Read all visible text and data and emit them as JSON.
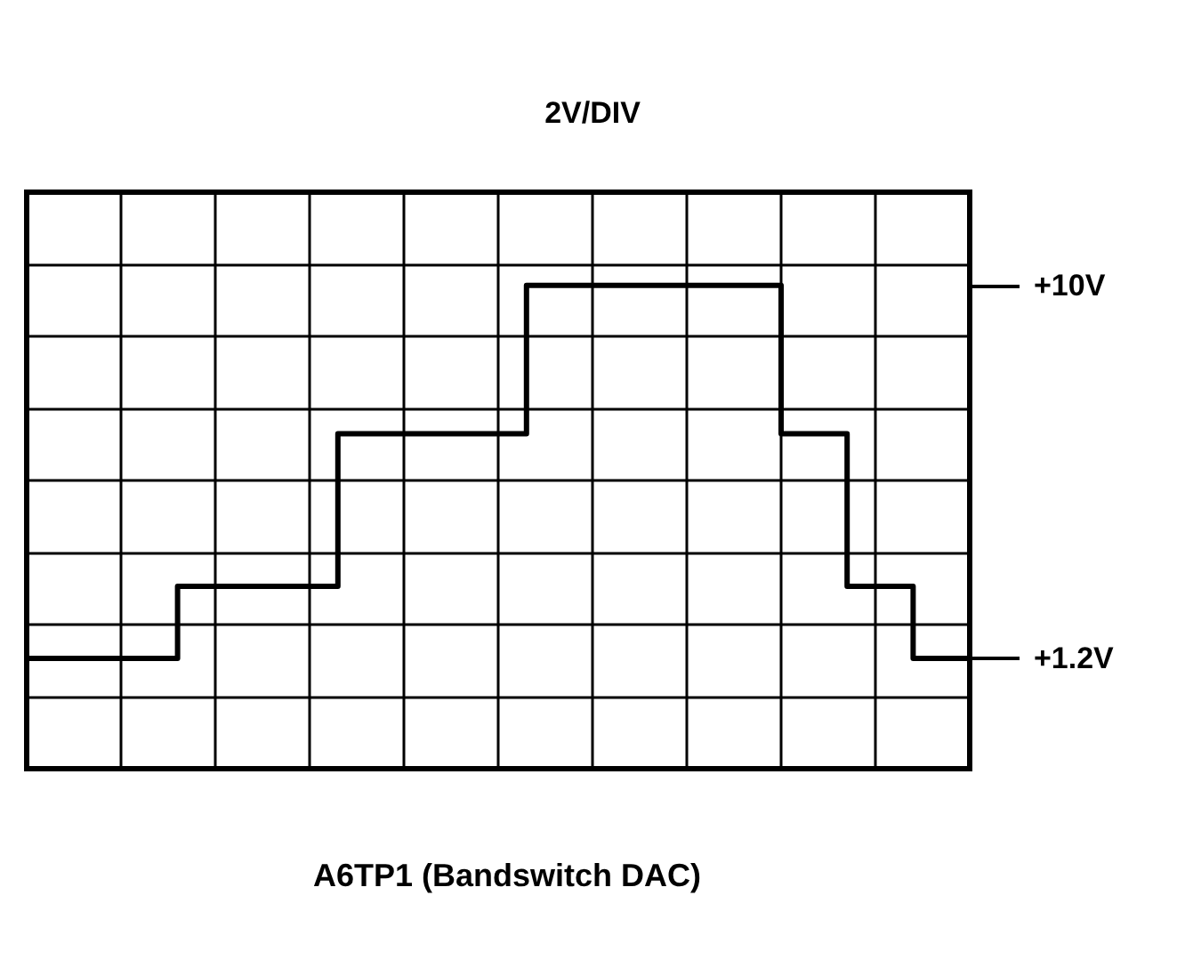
{
  "chart_data": {
    "type": "step",
    "title": "2V/DIV",
    "xlabel": "A6TP1 (Bandswitch DAC)",
    "categories": [
      null,
      null,
      null,
      null,
      null,
      null,
      null,
      null,
      null,
      null,
      null,
      null,
      null,
      null,
      null,
      null,
      null,
      null,
      null,
      null,
      null,
      null,
      null,
      null,
      null,
      null,
      null,
      null,
      null,
      null,
      null,
      null,
      null,
      null,
      null,
      null,
      null,
      null,
      null,
      null,
      null,
      null,
      null,
      null,
      null,
      null,
      null,
      null,
      null,
      null,
      null,
      null,
      null,
      null,
      null,
      null,
      null,
      null,
      null,
      null,
      null,
      null,
      null,
      null,
      null,
      null,
      null,
      null,
      null,
      null,
      null,
      null,
      null,
      null,
      null,
      null,
      null,
      null,
      null,
      null,
      null,
      null,
      null,
      null,
      null,
      null,
      null,
      null,
      null,
      null,
      null,
      null,
      null,
      null,
      null,
      null,
      null,
      null,
      null,
      null,
      null
    ],
    "series": [
      {
        "color": "#000000",
        "values": [
          1.2,
          1.2,
          1.2,
          1.2,
          1.2,
          1.2,
          1.2,
          1.2,
          1.2,
          1.2,
          1.2,
          1.2,
          1.2,
          1.2,
          1.2,
          1.2,
          2.9,
          2.9,
          2.9,
          2.9,
          2.9,
          2.9,
          2.9,
          2.9,
          2.9,
          2.9,
          2.9,
          2.9,
          2.9,
          2.9,
          2.9,
          2.9,
          2.9,
          6.5,
          6.5,
          6.5,
          6.5,
          6.5,
          6.5,
          6.5,
          6.5,
          6.5,
          6.5,
          6.5,
          6.5,
          6.5,
          6.5,
          6.5,
          6.5,
          6.5,
          6.5,
          6.5,
          6.5,
          10,
          10,
          10,
          10,
          10,
          10,
          10,
          10,
          10,
          10,
          10,
          10,
          10,
          10,
          10,
          10,
          10,
          10,
          10,
          10,
          10,
          10,
          10,
          10,
          10,
          10,
          10,
          6.5,
          6.5,
          6.5,
          6.5,
          6.5,
          6.5,
          6.5,
          2.9,
          2.9,
          2.9,
          2.9,
          2.9,
          2.9,
          2.9,
          1.2,
          1.2,
          1.2,
          1.2,
          1.2,
          1.2,
          1.2
        ]
      }
    ],
    "ylim": [
      -1.4,
      12.2
    ],
    "yticks": [
      {
        "value": -1.4,
        "label": null
      },
      {
        "value": 0.3,
        "label": null
      },
      {
        "value": 1.2,
        "label": "+1.2V"
      },
      {
        "value": 2.0,
        "label": null
      },
      {
        "value": 3.7,
        "label": null
      },
      {
        "value": 5.4,
        "label": null
      },
      {
        "value": 7.1,
        "label": null
      },
      {
        "value": 8.8,
        "label": null
      },
      {
        "value": 10,
        "label": "+10V"
      },
      {
        "value": 10.5,
        "label": null
      },
      {
        "value": 12.2,
        "label": null
      }
    ],
    "tick_labels": "y",
    "grid": true,
    "line_style": "solid"
  }
}
